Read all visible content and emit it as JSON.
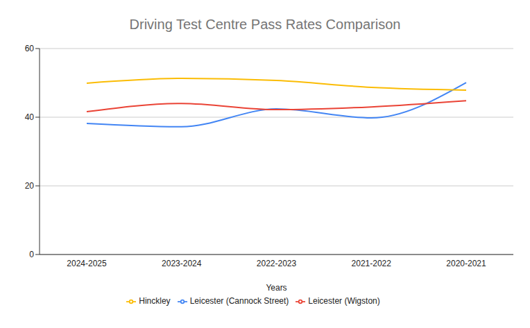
{
  "chart_data": {
    "type": "line",
    "title": "Driving Test Centre Pass Rates Comparison",
    "x_label": "Years",
    "categories": [
      "2024-2025",
      "2023-2024",
      "2022-2023",
      "2021-2022",
      "2020-2021"
    ],
    "series": [
      {
        "name": "Leicester (Cannock Street)",
        "color": "#4285f4",
        "values": [
          38.2,
          37.2,
          42.4,
          39.8,
          50.1
        ]
      },
      {
        "name": "Leicester (Wigston)",
        "color": "#ea4335",
        "values": [
          41.6,
          44.0,
          42.2,
          43.0,
          44.8
        ]
      },
      {
        "name": "Hinckley",
        "color": "#fbbc04",
        "values": [
          49.9,
          51.3,
          50.7,
          48.7,
          47.9
        ]
      }
    ],
    "ylim": [
      0,
      60
    ],
    "yticks": [
      0,
      20,
      40,
      60
    ],
    "grid": true,
    "legend": "bottom",
    "line_style": "smooth",
    "marker": "none"
  }
}
